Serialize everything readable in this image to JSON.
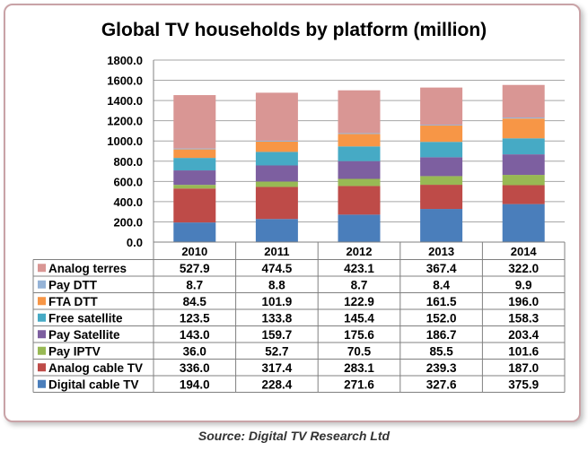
{
  "chart_data": {
    "type": "bar",
    "stacked": true,
    "title": "Global TV households by platform (million)",
    "categories": [
      "2010",
      "2011",
      "2012",
      "2013",
      "2014"
    ],
    "ylim": [
      0,
      1800
    ],
    "yticks": [
      "0.0",
      "200.0",
      "400.0",
      "600.0",
      "800.0",
      "1000.0",
      "1200.0",
      "1400.0",
      "1600.0",
      "1800.0"
    ],
    "grid": true,
    "xlabel": "",
    "ylabel": "",
    "series": [
      {
        "name": "Digital cable TV",
        "color": "#4a7ebb",
        "values": [
          194.0,
          228.4,
          271.6,
          327.6,
          375.9
        ],
        "labels": [
          "194.0",
          "228.4",
          "271.6",
          "327.6",
          "375.9"
        ]
      },
      {
        "name": "Analog cable TV",
        "color": "#be4b48",
        "values": [
          336.0,
          317.4,
          283.1,
          239.3,
          187.0
        ],
        "labels": [
          "336.0",
          "317.4",
          "283.1",
          "239.3",
          "187.0"
        ]
      },
      {
        "name": "Pay IPTV",
        "color": "#98b954",
        "values": [
          36.0,
          52.7,
          70.5,
          85.5,
          101.6
        ],
        "labels": [
          "36.0",
          "52.7",
          "70.5",
          "85.5",
          "101.6"
        ]
      },
      {
        "name": "Pay Satellite",
        "color": "#7d5fa0",
        "values": [
          143.0,
          159.7,
          175.6,
          186.7,
          203.4
        ],
        "labels": [
          "143.0",
          "159.7",
          "175.6",
          "186.7",
          "203.4"
        ]
      },
      {
        "name": "Free satellite",
        "color": "#46aac5",
        "values": [
          123.5,
          133.8,
          145.4,
          152.0,
          158.3
        ],
        "labels": [
          "123.5",
          "133.8",
          "145.4",
          "152.0",
          "158.3"
        ]
      },
      {
        "name": "FTA DTT",
        "color": "#f79646",
        "values": [
          84.5,
          101.9,
          122.9,
          161.5,
          196.0
        ],
        "labels": [
          "84.5",
          "101.9",
          "122.9",
          "161.5",
          "196.0"
        ]
      },
      {
        "name": "Pay DTT",
        "color": "#95b3d7",
        "values": [
          8.7,
          8.8,
          8.7,
          8.4,
          9.9
        ],
        "labels": [
          "8.7",
          "8.8",
          "8.7",
          "8.4",
          "9.9"
        ]
      },
      {
        "name": "Analog terres",
        "color": "#d99694",
        "values": [
          527.9,
          474.5,
          423.1,
          367.4,
          322.0
        ],
        "labels": [
          "527.9",
          "474.5",
          "423.1",
          "367.4",
          "322.0"
        ]
      }
    ],
    "source": "Source: Digital TV Research Ltd"
  }
}
